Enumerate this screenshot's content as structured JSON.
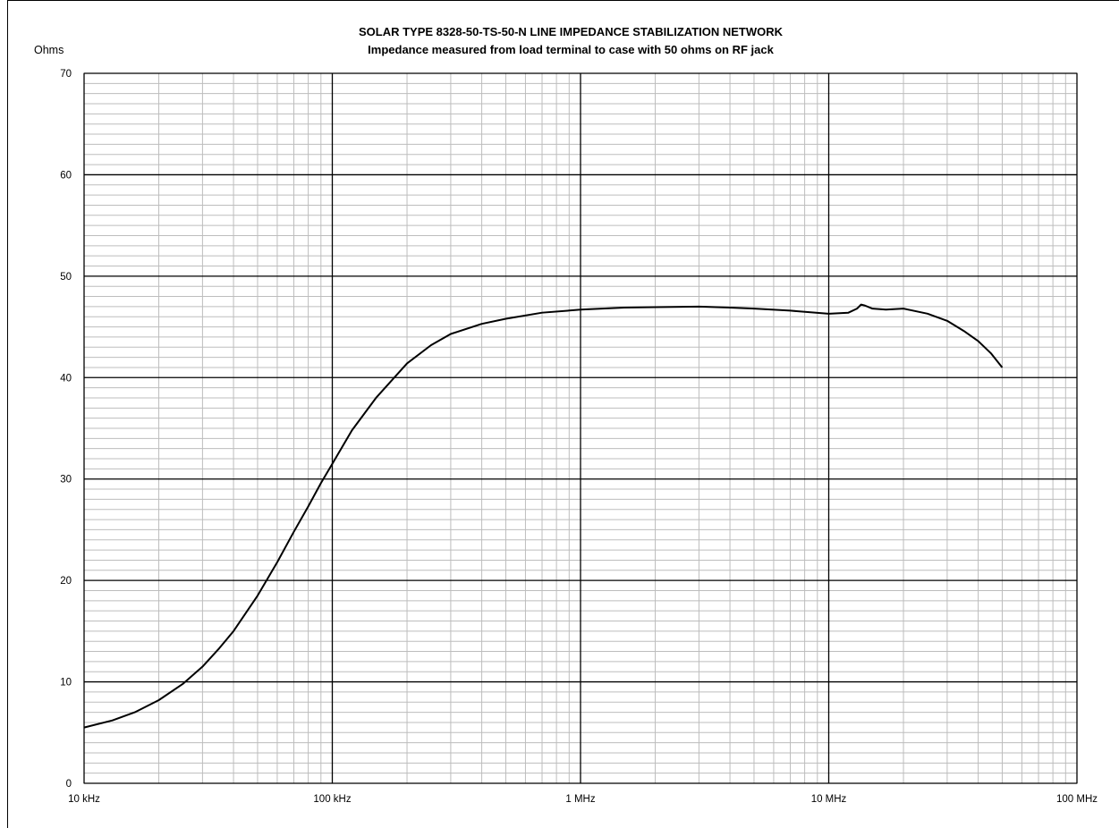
{
  "chart_data": {
    "type": "line",
    "title": "SOLAR TYPE 8328-50-TS-50-N LINE IMPEDANCE STABILIZATION NETWORK",
    "subtitle": "Impedance measured from load terminal to case with 50 ohms on RF jack",
    "ylabel": "Ohms",
    "xlabel": "",
    "x_scale": "log",
    "xlim": [
      10000,
      100000000
    ],
    "ylim": [
      0,
      70
    ],
    "grid": true,
    "legend": "none",
    "line_color": "#000000",
    "x_ticks": [
      {
        "value": 10000,
        "label": "10 kHz"
      },
      {
        "value": 100000,
        "label": "100 kHz"
      },
      {
        "value": 1000000,
        "label": "1 MHz"
      },
      {
        "value": 10000000,
        "label": "10 MHz"
      },
      {
        "value": 100000000,
        "label": "100 MHz"
      }
    ],
    "y_ticks": [
      {
        "value": 0,
        "label": "0"
      },
      {
        "value": 10,
        "label": "10"
      },
      {
        "value": 20,
        "label": "20"
      },
      {
        "value": 30,
        "label": "30"
      },
      {
        "value": 40,
        "label": "40"
      },
      {
        "value": 50,
        "label": "50"
      },
      {
        "value": 60,
        "label": "60"
      },
      {
        "value": 70,
        "label": "70"
      }
    ],
    "series": [
      {
        "x": [
          10000,
          13000,
          16000,
          20000,
          25000,
          30000,
          35000,
          40000,
          50000,
          60000,
          70000,
          80000,
          90000,
          100000,
          120000,
          150000,
          200000,
          250000,
          300000,
          400000,
          500000,
          700000,
          1000000,
          1500000,
          2000000,
          3000000,
          4000000,
          5000000,
          7000000,
          10000000,
          12000000,
          13000000,
          13500000,
          14000000,
          15000000,
          17000000,
          20000000,
          25000000,
          30000000,
          35000000,
          40000000,
          45000000,
          50000000
        ],
        "y": [
          5.5,
          6.2,
          7.0,
          8.2,
          9.8,
          11.5,
          13.3,
          15.0,
          18.5,
          21.8,
          24.8,
          27.3,
          29.6,
          31.5,
          34.8,
          38.0,
          41.4,
          43.2,
          44.3,
          45.3,
          45.8,
          46.4,
          46.7,
          46.9,
          46.95,
          47.0,
          46.9,
          46.8,
          46.6,
          46.3,
          46.4,
          46.8,
          47.2,
          47.1,
          46.8,
          46.7,
          46.8,
          46.3,
          45.6,
          44.6,
          43.6,
          42.4,
          41.0
        ]
      }
    ]
  }
}
